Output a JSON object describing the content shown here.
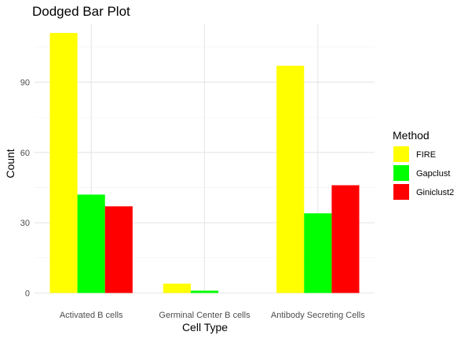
{
  "chart_data": {
    "type": "bar",
    "title": "Dodged Bar Plot",
    "xlabel": "Cell Type",
    "ylabel": "Count",
    "categories": [
      "Activated B cells",
      "Germinal Center B cells",
      "Antibody Secreting Cells"
    ],
    "series": [
      {
        "name": "FIRE",
        "color": "#ffff00",
        "values": [
          111,
          4,
          97
        ]
      },
      {
        "name": "Gapclust",
        "color": "#00ff00",
        "values": [
          42,
          1,
          34
        ]
      },
      {
        "name": "Giniclust2",
        "color": "#ff0000",
        "values": [
          37,
          0,
          46
        ]
      }
    ],
    "ylim": [
      0,
      115
    ],
    "yticks": [
      0,
      30,
      60,
      90
    ],
    "legend_title": "Method",
    "legend_position": "right",
    "grid": true
  }
}
